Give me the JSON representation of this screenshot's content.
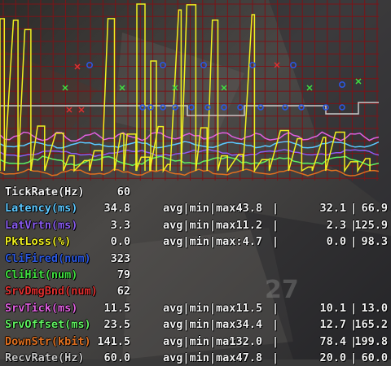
{
  "colors": {
    "grid": "#7a1418",
    "white": "#f2f2f2",
    "tickrate": "#f0f0f0",
    "latency": "#5cc8ff",
    "latvrtn": "#8a5cf0",
    "pktloss": "#f0f020",
    "clifired": "#2b58e0",
    "clihit": "#40e040",
    "srvdmgbnd": "#e03030",
    "srvtick": "#e060e0",
    "srvoffset": "#60f060",
    "downstr": "#e07020",
    "recvrate": "#c8c8c8"
  },
  "stats": [
    {
      "label": "TickRate(Hz)",
      "value": "60",
      "color": "tickrate"
    },
    {
      "label": "Latency(ms)",
      "value": "34.8",
      "avg": "43.8",
      "min": "32.1",
      "max": "66.9",
      "color": "latency"
    },
    {
      "label": "LatVrtn(ms)",
      "value": "3.3",
      "avg": "11.2",
      "min": "2.3",
      "max": "125.9",
      "color": "latvrtn"
    },
    {
      "label": "PktLoss(%)",
      "value": "0.0",
      "avg": "4.7",
      "min": "0.0",
      "max": "98.3",
      "color": "pktloss"
    },
    {
      "label": "CliFired(num)",
      "value": "323",
      "color": "clifired"
    },
    {
      "label": "CliHit(num)",
      "value": "79",
      "color": "clihit"
    },
    {
      "label": "SrvDmgBnd(num)",
      "value": "62",
      "color": "srvdmgbnd"
    },
    {
      "label": "SrvTick(ms)",
      "value": "11.5",
      "avg": "11.5",
      "min": "10.1",
      "max": "13.0",
      "color": "srvtick"
    },
    {
      "label": "SrvOffset(ms)",
      "value": "23.5",
      "avg": "34.4",
      "min": "12.7",
      "max": "165.2",
      "color": "srvoffset"
    },
    {
      "label": "DownStr(kbit)",
      "value": "141.5",
      "avg": "132.0",
      "min": "78.4",
      "max": "199.8",
      "color": "downstr"
    },
    {
      "label": "RecvRate(Hz)",
      "value": "60.0",
      "avg": "47.8",
      "min": "20.0",
      "max": "60.0",
      "color": "recvrate"
    }
  ],
  "avg_min_max_label": "avg|min|max:",
  "separator": "|"
}
